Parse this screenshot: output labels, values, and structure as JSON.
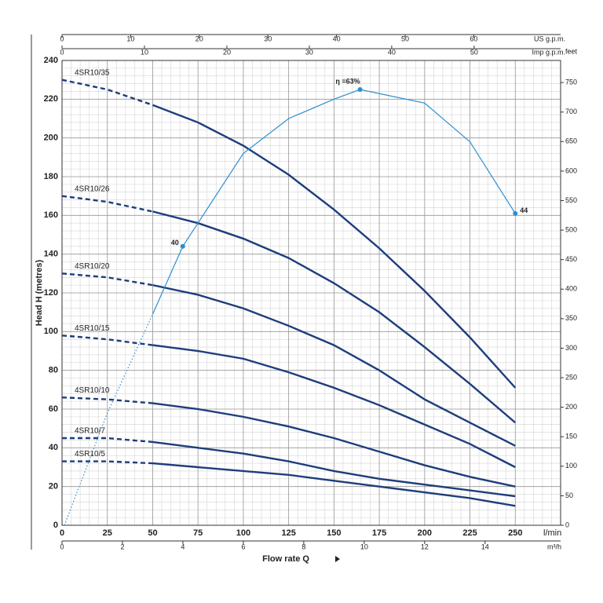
{
  "chart_data": {
    "type": "line",
    "y_label": "Head H (metres)",
    "x_label": "Flow rate Q",
    "x_unit": "l/min",
    "x": [
      0,
      25,
      50,
      75,
      100,
      125,
      150,
      175,
      200,
      225,
      250
    ],
    "xlim": [
      0,
      275
    ],
    "xticks": [
      0,
      25,
      50,
      75,
      100,
      125,
      150,
      175,
      200,
      225,
      250
    ],
    "ylim": [
      0,
      240
    ],
    "yticks": [
      0,
      20,
      40,
      60,
      80,
      100,
      120,
      140,
      160,
      180,
      200,
      220,
      240
    ],
    "y2_label": "feet",
    "y2lim": [
      0,
      787.4
    ],
    "y2ticks": [
      0,
      50,
      100,
      150,
      200,
      250,
      300,
      350,
      400,
      450,
      500,
      550,
      600,
      650,
      700,
      750
    ],
    "top_axes": [
      {
        "label": "US g.p.m.",
        "lim": [
          0,
          72.65
        ],
        "ticks": [
          0,
          10,
          20,
          30,
          40,
          50,
          60
        ]
      },
      {
        "label": "Imp g.p.m.",
        "lim": [
          0,
          60.49
        ],
        "ticks": [
          0,
          10,
          20,
          30,
          40,
          50
        ]
      }
    ],
    "bottom_axis2": {
      "label": "m³/h",
      "lim": [
        0,
        16.5
      ],
      "ticks": [
        0,
        2,
        4,
        6,
        8,
        10,
        12,
        14
      ]
    },
    "dashed_below_x": 50,
    "grid": true,
    "series": [
      {
        "name": "4SR10/35",
        "color": "#1d3d7c",
        "values": [
          230,
          225,
          217,
          208,
          196,
          181,
          163,
          143,
          121,
          97,
          71
        ]
      },
      {
        "name": "4SR10/26",
        "color": "#1d3d7c",
        "values": [
          170,
          167,
          162,
          156,
          148,
          138,
          125,
          110,
          92,
          73,
          53
        ]
      },
      {
        "name": "4SR10/20",
        "color": "#1d3d7c",
        "values": [
          130,
          128,
          124,
          119,
          112,
          103,
          93,
          80,
          65,
          53,
          41
        ]
      },
      {
        "name": "4SR10/15",
        "color": "#1d3d7c",
        "values": [
          98,
          96,
          93,
          90,
          86,
          79,
          71,
          62,
          52,
          42,
          30
        ]
      },
      {
        "name": "4SR10/10",
        "color": "#1d3d7c",
        "values": [
          66,
          65,
          63,
          60,
          56,
          51,
          45,
          38,
          31,
          25,
          20
        ]
      },
      {
        "name": "4SR10/7",
        "color": "#1d3d7c",
        "values": [
          45,
          45,
          43,
          40,
          37,
          33,
          28,
          24,
          21,
          18,
          15
        ]
      },
      {
        "name": "4SR10/5",
        "color": "#1d3d7c",
        "values": [
          33,
          33,
          32,
          30,
          28,
          26,
          23,
          20,
          17,
          14,
          10
        ]
      }
    ],
    "efficiency": {
      "color": "#2b8fd1",
      "x": [
        1.3,
        25,
        50,
        66.6,
        100,
        125,
        150,
        164.4,
        200,
        225,
        250
      ],
      "y": [
        0,
        58,
        109,
        144,
        192,
        210,
        220,
        225,
        218,
        198,
        161
      ],
      "point_labels": [
        null,
        null,
        null,
        "40",
        null,
        null,
        null,
        "η =63%",
        null,
        null,
        "44"
      ]
    }
  }
}
